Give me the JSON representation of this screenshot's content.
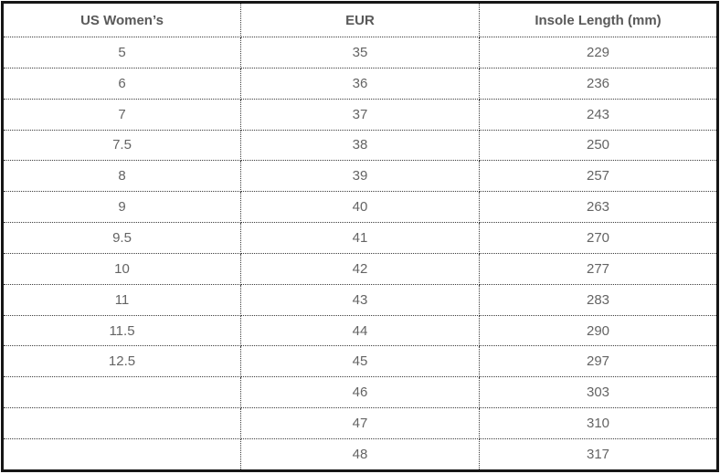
{
  "table": {
    "columns": [
      "US Women’s",
      "EUR",
      "Insole Length (mm)"
    ],
    "rows": [
      [
        "5",
        "35",
        "229"
      ],
      [
        "6",
        "36",
        "236"
      ],
      [
        "7",
        "37",
        "243"
      ],
      [
        "7.5",
        "38",
        "250"
      ],
      [
        "8",
        "39",
        "257"
      ],
      [
        "9",
        "40",
        "263"
      ],
      [
        "9.5",
        "41",
        "270"
      ],
      [
        "10",
        "42",
        "277"
      ],
      [
        "11",
        "43",
        "283"
      ],
      [
        "11.5",
        "44",
        "290"
      ],
      [
        "12.5",
        "45",
        "297"
      ],
      [
        "",
        "46",
        "303"
      ],
      [
        "",
        "47",
        "310"
      ],
      [
        "",
        "48",
        "317"
      ]
    ],
    "colors": {
      "outer_border": "#161616",
      "inner_border": "#3c3c3c",
      "header_text": "#595959",
      "cell_text": "#646464",
      "background": "#ffffff"
    }
  }
}
